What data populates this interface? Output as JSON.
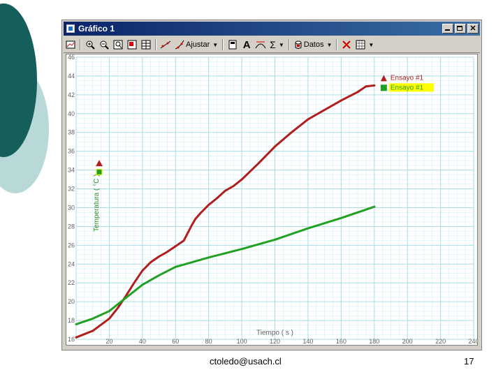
{
  "window": {
    "title": "Gráfico 1",
    "close_label": "✕"
  },
  "toolbar": {
    "adjust_label": "Ajustar",
    "data_label": "Datos",
    "sigma": "Σ",
    "text_tool": "A"
  },
  "footer": {
    "email": "ctoledo@usach.cl",
    "page": "17"
  },
  "colors": {
    "series_red": "#b01e1e",
    "series_green": "#22a022",
    "grid": "#a8dde8",
    "axis_text": "#606060",
    "ylabel": "#2e8b2e",
    "legend_highlight": "#ffff00",
    "titlebar": "#0a246a",
    "slide_teal": "#1e6e6a"
  },
  "icons": [
    "graph-options-icon",
    "zoom-in-icon",
    "zoom-out-icon",
    "autoscale-icon",
    "zoom-box-icon",
    "data-table-icon",
    "linear-fit-icon",
    "calculator-icon",
    "text-tool-icon",
    "tangent-icon",
    "sigma-icon",
    "data-set-icon",
    "delete-icon",
    "grid-options-icon"
  ],
  "chart_data": {
    "type": "line",
    "title": "",
    "xlabel": "Tiempo ( s )",
    "ylabel": "Temperatura ( °C )",
    "xlim": [
      0,
      240
    ],
    "ylim": [
      16,
      46
    ],
    "x_ticks": [
      20,
      40,
      60,
      80,
      100,
      120,
      140,
      160,
      180,
      200,
      220,
      240
    ],
    "x_tick_labels": [
      "20",
      "40",
      "60",
      "80",
      "100",
      "120",
      "140",
      "160",
      "180",
      "200",
      "220",
      "240"
    ],
    "y_ticks": [
      16,
      18,
      20,
      22,
      24,
      26,
      28,
      30,
      32,
      34,
      36,
      38,
      40,
      42,
      44,
      46
    ],
    "grid": true,
    "legend_position": "top-right",
    "series": [
      {
        "name": "Ensayo #1",
        "color": "#b01e1e",
        "marker": "triangle",
        "x": [
          0,
          10,
          20,
          25,
          30,
          35,
          40,
          45,
          50,
          55,
          60,
          65,
          70,
          72,
          75,
          80,
          85,
          90,
          95,
          100,
          110,
          120,
          130,
          140,
          150,
          160,
          170,
          175,
          180
        ],
        "y": [
          16.2,
          16.9,
          18.2,
          19.3,
          20.6,
          22.0,
          23.3,
          24.2,
          24.8,
          25.3,
          25.9,
          26.5,
          28.2,
          28.8,
          29.4,
          30.3,
          31.0,
          31.8,
          32.3,
          33.0,
          34.7,
          36.5,
          38.0,
          39.4,
          40.4,
          41.4,
          42.3,
          42.9,
          43.0
        ]
      },
      {
        "name": "Ensayo #1",
        "color": "#22a022",
        "marker": "square",
        "x": [
          0,
          10,
          20,
          30,
          40,
          50,
          60,
          70,
          80,
          100,
          120,
          140,
          160,
          175,
          180
        ],
        "y": [
          17.6,
          18.2,
          19.0,
          20.4,
          21.8,
          22.8,
          23.7,
          24.2,
          24.7,
          25.6,
          26.6,
          27.8,
          28.9,
          29.8,
          30.1
        ]
      }
    ]
  }
}
